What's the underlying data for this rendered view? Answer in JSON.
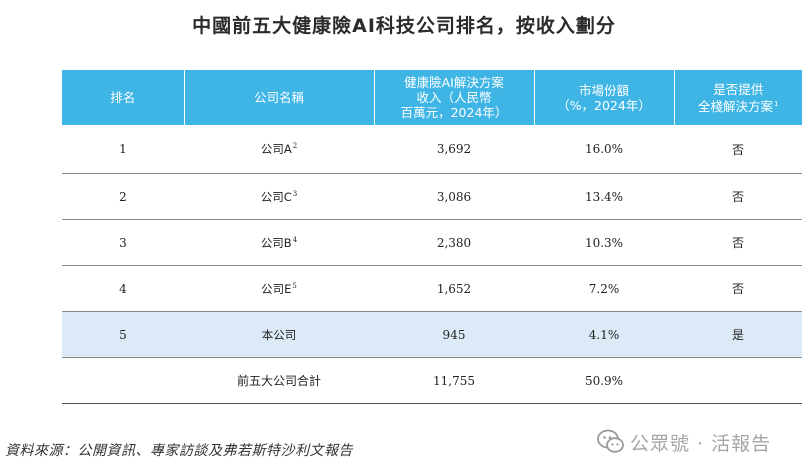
{
  "title": "中國前五大健康險AI科技公司排名，按收入劃分",
  "table": {
    "headers": [
      [
        "排名"
      ],
      [
        "公司名稱"
      ],
      [
        "健康險AI解決方案",
        "收入（人民幣",
        "百萬元，2024年）"
      ],
      [
        "市場份額",
        "（%，2024年）"
      ],
      [
        "是否提供",
        "全棧解決方案"
      ]
    ],
    "header_sup": "1",
    "rows": [
      {
        "rank": "1",
        "company": "公司A",
        "note": "2",
        "revenue": "3,692",
        "share": "16.0%",
        "fullstack": "否"
      },
      {
        "rank": "2",
        "company": "公司C",
        "note": "3",
        "revenue": "3,086",
        "share": "13.4%",
        "fullstack": "否"
      },
      {
        "rank": "3",
        "company": "公司B",
        "note": "4",
        "revenue": "2,380",
        "share": "10.3%",
        "fullstack": "否"
      },
      {
        "rank": "4",
        "company": "公司E",
        "note": "5",
        "revenue": "1,652",
        "share": "7.2%",
        "fullstack": "否"
      },
      {
        "rank": "5",
        "company": "本公司",
        "note": "",
        "revenue": "945",
        "share": "4.1%",
        "fullstack": "是"
      }
    ],
    "total": {
      "label": "前五大公司合計",
      "revenue": "11,755",
      "share": "50.9%"
    }
  },
  "source": "資料來源：公開資訊、專家訪談及弗若斯特沙利文報告",
  "watermark": {
    "text": "公眾號 · 活報告",
    "icon": "wechat-icon"
  }
}
